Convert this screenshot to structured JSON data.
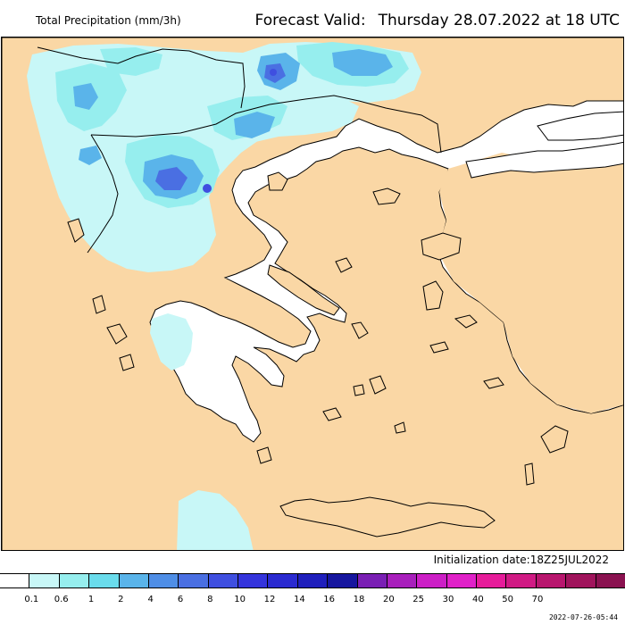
{
  "header": {
    "left_title": "Total Precipitation (mm/3h)",
    "forecast_label": "Forecast Valid:",
    "forecast_value": "Thursday 28.07.2022 at 18 UTC"
  },
  "footer": {
    "initialization": "Initialization date:18Z25JUL2022",
    "timestamp": "2022-07-26-05:44"
  },
  "legend": {
    "colors": [
      "#ffffff",
      "#c8f7f7",
      "#96eeee",
      "#6adcec",
      "#5ab4ea",
      "#4f8ee6",
      "#4a6fe2",
      "#3f4fe0",
      "#3434dc",
      "#2a2ad0",
      "#1f1fbc",
      "#16169e",
      "#7a1fb4",
      "#a81fbc",
      "#cc1fc6",
      "#e021c8",
      "#e61c9a",
      "#d01a84",
      "#b8166e",
      "#a0145c",
      "#8a1250"
    ],
    "labels": [
      "0.1",
      "0.6",
      "1",
      "2",
      "4",
      "6",
      "8",
      "10",
      "12",
      "14",
      "16",
      "18",
      "20",
      "25",
      "30",
      "40",
      "50",
      "70"
    ]
  },
  "map_colors": {
    "sea": "#ffffff",
    "land_dry": "#fad7a5",
    "precip_light": "#c8f7f7",
    "precip_moderate": "#96eeee",
    "precip_heavy": "#5ab4ea",
    "precip_very_heavy": "#4a6fe2",
    "precip_extreme": "#3f4fe0",
    "coastline": "#000000"
  }
}
